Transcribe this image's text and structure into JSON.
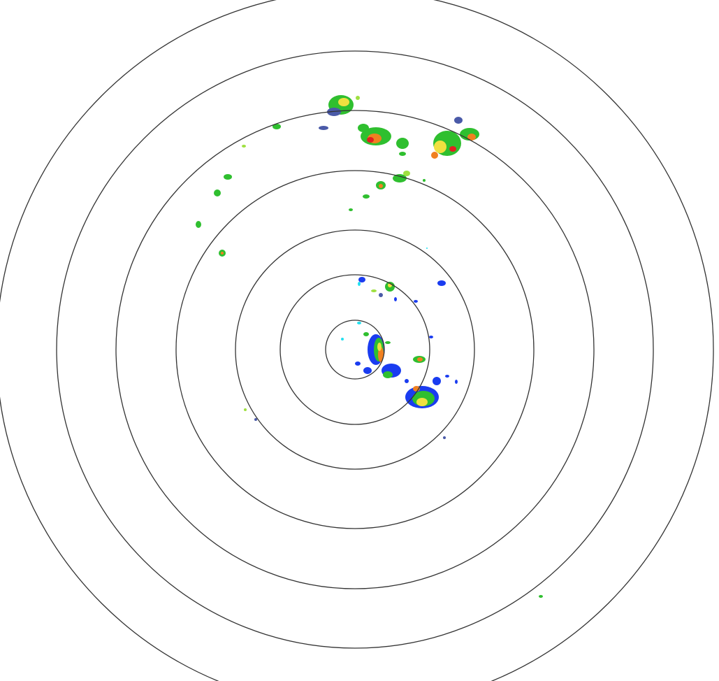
{
  "radar": {
    "range_ring_count": 7,
    "ring_color": "#333333",
    "background": "#ffffff",
    "reflectivity_colors": {
      "light": "#4a5aa8",
      "blue": "#1a3cf0",
      "cyan": "#22e0f0",
      "green": "#2fbf2f",
      "light-green": "#9fe040",
      "yellow": "#f0e040",
      "orange": "#f08020",
      "red": "#e02020"
    }
  }
}
